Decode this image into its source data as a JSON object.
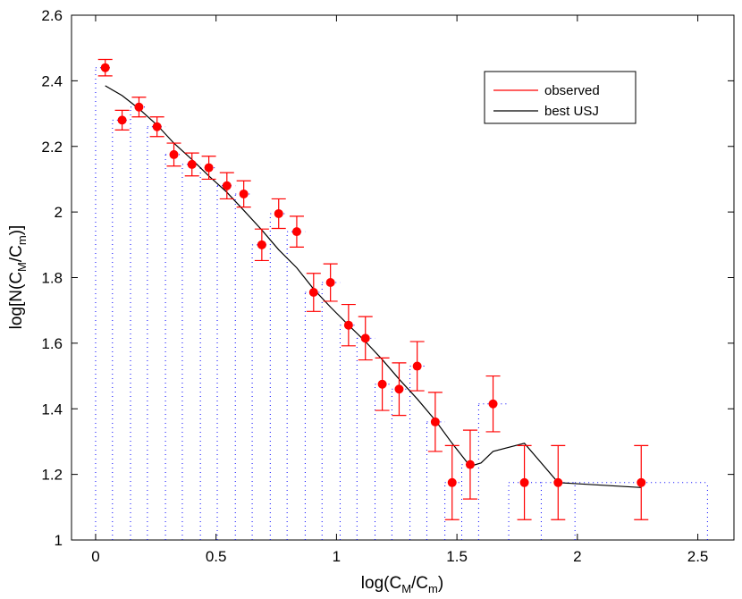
{
  "chart_data": {
    "type": "scatter",
    "title": "",
    "xlabel": "log(C_M/C_m)",
    "xlabel_parts": {
      "base": "log(C",
      "sub1": "M",
      "mid": "/C",
      "sub2": "m",
      "end": ")"
    },
    "ylabel": "log[N(C_M/C_m)]",
    "ylabel_parts": {
      "base": "log[N(C",
      "sub1": "M",
      "mid": "/C",
      "sub2": "m",
      "end": ")]"
    },
    "xlim": [
      -0.1,
      2.65
    ],
    "ylim": [
      1.0,
      2.6
    ],
    "xticks": [
      0,
      0.5,
      1,
      1.5,
      2,
      2.5
    ],
    "xtick_labels": [
      "0",
      "0.5",
      "1",
      "1.5",
      "2",
      "2.5"
    ],
    "yticks": [
      1,
      1.2,
      1.4,
      1.6,
      1.8,
      2,
      2.2,
      2.4,
      2.6
    ],
    "ytick_labels": [
      "1",
      "1.2",
      "1.4",
      "1.6",
      "1.8",
      "2",
      "2.2",
      "2.4",
      "2.6"
    ],
    "grid": false,
    "legend_position": "top-right",
    "legend": [
      {
        "label": "observed",
        "color": "#ff0000"
      },
      {
        "label": "best USJ",
        "color": "#000000"
      }
    ],
    "colors": {
      "observed": "#ff0000",
      "fit": "#000000",
      "bins": "#0000ff"
    },
    "series": [
      {
        "name": "observed",
        "style": "points with error bars",
        "x": [
          0.04,
          0.11,
          0.18,
          0.255,
          0.325,
          0.4,
          0.47,
          0.545,
          0.615,
          0.69,
          0.76,
          0.835,
          0.905,
          0.975,
          1.05,
          1.12,
          1.19,
          1.26,
          1.335,
          1.41,
          1.48,
          1.555,
          1.65,
          1.78,
          1.92,
          2.265
        ],
        "y": [
          2.44,
          2.28,
          2.32,
          2.26,
          2.175,
          2.145,
          2.135,
          2.08,
          2.055,
          1.9,
          1.995,
          1.94,
          1.755,
          1.785,
          1.655,
          1.615,
          1.475,
          1.46,
          1.53,
          1.36,
          1.175,
          1.23,
          1.415,
          1.175,
          1.175,
          1.175
        ],
        "y_err": [
          0.025,
          0.03,
          0.03,
          0.03,
          0.035,
          0.035,
          0.035,
          0.04,
          0.04,
          0.048,
          0.045,
          0.047,
          0.058,
          0.057,
          0.063,
          0.066,
          0.08,
          0.08,
          0.075,
          0.09,
          0.113,
          0.105,
          0.085,
          0.113,
          0.113,
          0.113
        ]
      },
      {
        "name": "best USJ",
        "style": "line",
        "x": [
          0.04,
          0.11,
          0.18,
          0.255,
          0.325,
          0.4,
          0.47,
          0.545,
          0.615,
          0.69,
          0.76,
          0.835,
          0.905,
          0.975,
          1.05,
          1.12,
          1.19,
          1.26,
          1.335,
          1.41,
          1.48,
          1.555,
          1.6,
          1.65,
          1.78,
          1.92,
          2.265
        ],
        "y": [
          2.385,
          2.355,
          2.315,
          2.265,
          2.21,
          2.16,
          2.11,
          2.06,
          2.005,
          1.945,
          1.885,
          1.83,
          1.765,
          1.71,
          1.655,
          1.605,
          1.55,
          1.49,
          1.43,
          1.365,
          1.295,
          1.225,
          1.235,
          1.27,
          1.295,
          1.175,
          1.16
        ]
      },
      {
        "name": "bin edges",
        "style": "dotted step outline",
        "edges": [
          0.0,
          0.07,
          0.145,
          0.215,
          0.29,
          0.36,
          0.435,
          0.505,
          0.58,
          0.65,
          0.725,
          0.795,
          0.87,
          0.94,
          1.015,
          1.085,
          1.16,
          1.23,
          1.305,
          1.375,
          1.45,
          1.52,
          1.59,
          1.715,
          1.85,
          1.99,
          2.54
        ],
        "heights": [
          2.44,
          2.28,
          2.32,
          2.26,
          2.175,
          2.145,
          2.135,
          2.08,
          2.055,
          1.9,
          1.995,
          1.94,
          1.755,
          1.785,
          1.655,
          1.615,
          1.475,
          1.46,
          1.53,
          1.36,
          1.175,
          1.23,
          1.415,
          1.175,
          1.175,
          1.175
        ]
      }
    ]
  }
}
